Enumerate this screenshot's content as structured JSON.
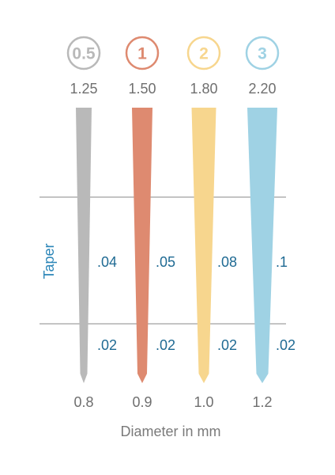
{
  "instruments": [
    {
      "badge": "0.5",
      "tip_label": "0.8",
      "top_label": "1.25",
      "upper_taper": ".04",
      "lower_taper": ".02",
      "color": "#b9b9b9"
    },
    {
      "badge": "1",
      "tip_label": "0.9",
      "top_label": "1.50",
      "upper_taper": ".05",
      "lower_taper": ".02",
      "color": "#de8a70"
    },
    {
      "badge": "2",
      "tip_label": "1.0",
      "top_label": "1.80",
      "upper_taper": ".08",
      "lower_taper": ".02",
      "color": "#f7d68e"
    },
    {
      "badge": "3",
      "tip_label": "1.2",
      "top_label": "2.20",
      "upper_taper": ".1",
      "lower_taper": ".02",
      "color": "#9fd2e4"
    }
  ],
  "axis": {
    "x_title": "Diameter in mm",
    "side_title": "Taper"
  },
  "colors": {
    "line": "#8a8a8a",
    "taper_text": "#1f6a93",
    "taper_title": "#2c86b8",
    "label_text": "#6f6f6f"
  }
}
